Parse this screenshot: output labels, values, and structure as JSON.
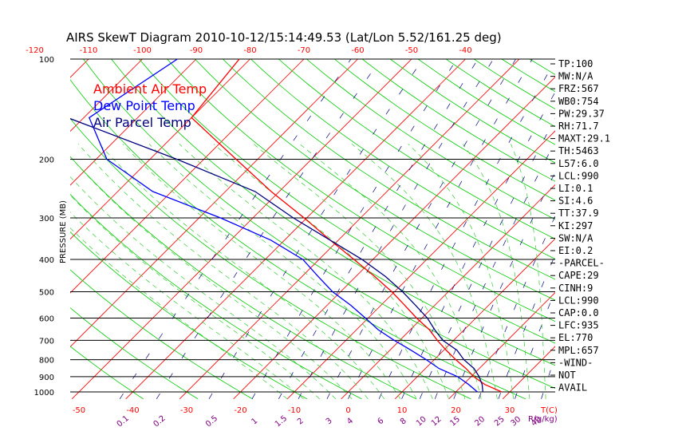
{
  "chart_data": {
    "type": "line",
    "title": "AIRS SkewT Diagram 2010-10-12/15:14:49.53 (Lat/Lon 5.52/161.25 deg)",
    "ylabel": "PRESSURE (MB)",
    "pressure_ticks": [
      100,
      200,
      300,
      400,
      500,
      600,
      700,
      800,
      900,
      1000
    ],
    "temperature_ticks_bottom": [
      -50,
      -40,
      -30,
      -20,
      -10,
      0,
      10,
      20,
      30
    ],
    "temperature_ticks_top": [
      -120,
      -110,
      -100,
      -90,
      -80,
      -70,
      -60,
      -50,
      -40
    ],
    "temperature_unit_label": "T(C)",
    "mixing_ratio_labels": [
      "0.1",
      "0.2",
      "0.5",
      "1",
      "1.5",
      "2",
      "3",
      "4",
      "6",
      "8",
      "10",
      "12",
      "15",
      "20",
      "25",
      "30",
      "40"
    ],
    "mixing_ratio_unit_label": "R(g/kg)",
    "legend": {
      "ambient": "Ambient Air Temp",
      "dewpoint": "Dew Point Temp",
      "parcel": "Air Parcel Temp"
    },
    "colors": {
      "ambient": "#ff0000",
      "dewpoint": "#0000ff",
      "parcel": "#000080",
      "isotherm": "#ff0000",
      "dry_adiabat": "#00cc00",
      "moist_adiabat": "#33cc33",
      "mixing_ratio": "#000080",
      "isobar": "#000000",
      "tick_label_red": "#ff0000",
      "tick_label_purple": "#800080"
    },
    "series": [
      {
        "name": "Ambient Air Temp",
        "points": [
          {
            "p": 100,
            "t": -82.0
          },
          {
            "p": 150,
            "t": -80.0
          },
          {
            "p": 200,
            "t": -64.0
          },
          {
            "p": 250,
            "t": -51.5
          },
          {
            "p": 300,
            "t": -40.5
          },
          {
            "p": 350,
            "t": -31.5
          },
          {
            "p": 400,
            "t": -23.5
          },
          {
            "p": 450,
            "t": -16.5
          },
          {
            "p": 500,
            "t": -10.5
          },
          {
            "p": 550,
            "t": -5.5
          },
          {
            "p": 600,
            "t": -1.0
          },
          {
            "p": 650,
            "t": 3.5
          },
          {
            "p": 700,
            "t": 7.0
          },
          {
            "p": 750,
            "t": 10.5
          },
          {
            "p": 800,
            "t": 14.0
          },
          {
            "p": 850,
            "t": 17.5
          },
          {
            "p": 900,
            "t": 20.5
          },
          {
            "p": 950,
            "t": 24.0
          },
          {
            "p": 1000,
            "t": 28.5
          }
        ]
      },
      {
        "name": "Dew Point Temp",
        "points": [
          {
            "p": 100,
            "t": -93.5
          },
          {
            "p": 150,
            "t": -99.0
          },
          {
            "p": 200,
            "t": -88.0
          },
          {
            "p": 250,
            "t": -73.5
          },
          {
            "p": 300,
            "t": -56.0
          },
          {
            "p": 350,
            "t": -42.5
          },
          {
            "p": 400,
            "t": -33.0
          },
          {
            "p": 450,
            "t": -27.0
          },
          {
            "p": 500,
            "t": -21.5
          },
          {
            "p": 550,
            "t": -15.5
          },
          {
            "p": 600,
            "t": -10.5
          },
          {
            "p": 650,
            "t": -6.0
          },
          {
            "p": 700,
            "t": -1.0
          },
          {
            "p": 750,
            "t": 4.0
          },
          {
            "p": 800,
            "t": 8.5
          },
          {
            "p": 850,
            "t": 12.5
          },
          {
            "p": 900,
            "t": 17.5
          },
          {
            "p": 950,
            "t": 21.0
          },
          {
            "p": 1000,
            "t": 24.0
          }
        ]
      },
      {
        "name": "Air Parcel Temp",
        "points": [
          {
            "p": 100,
            "t": -127.5
          },
          {
            "p": 150,
            "t": -103.0
          },
          {
            "p": 200,
            "t": -75.0
          },
          {
            "p": 250,
            "t": -54.5
          },
          {
            "p": 300,
            "t": -42.5
          },
          {
            "p": 350,
            "t": -31.5
          },
          {
            "p": 400,
            "t": -22.0
          },
          {
            "p": 450,
            "t": -14.5
          },
          {
            "p": 500,
            "t": -8.5
          },
          {
            "p": 550,
            "t": -3.5
          },
          {
            "p": 600,
            "t": 1.0
          },
          {
            "p": 650,
            "t": 4.5
          },
          {
            "p": 700,
            "t": 8.0
          },
          {
            "p": 750,
            "t": 12.5
          },
          {
            "p": 800,
            "t": 15.5
          },
          {
            "p": 850,
            "t": 19.0
          },
          {
            "p": 900,
            "t": 21.5
          },
          {
            "p": 950,
            "t": 23.5
          },
          {
            "p": 1000,
            "t": 25.0
          }
        ]
      }
    ],
    "indices": [
      "TP:100",
      "MW:N/A",
      "FRZ:567",
      "WB0:754",
      "PW:29.37",
      "RH:71.7",
      "MAXT:29.1",
      "TH:5463",
      "L57:6.0",
      "LCL:990",
      "LI:0.1",
      "SI:4.6",
      "TT:37.9",
      "KI:297",
      "SW:N/A",
      "EI:0.2",
      "-PARCEL-",
      "CAPE:29",
      "CINH:9",
      "LCL:990",
      "CAP:0.0",
      "LFC:935",
      "EL:770",
      "MPL:657",
      "-WIND-",
      "NOT",
      "AVAIL"
    ]
  }
}
